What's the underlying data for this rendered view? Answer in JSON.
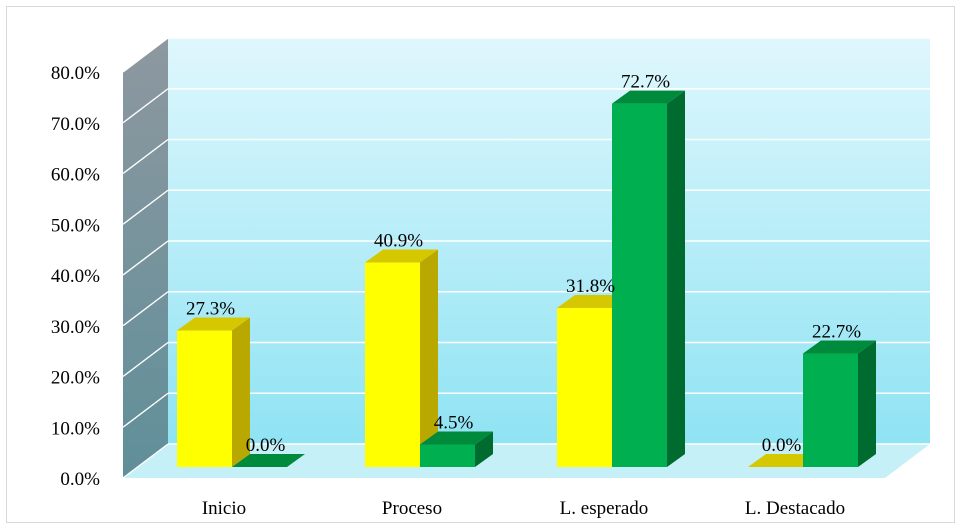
{
  "chart_data": {
    "type": "bar",
    "three_d": true,
    "categories": [
      "Inicio",
      "Proceso",
      "L. esperado",
      "L. Destacado"
    ],
    "series": [
      {
        "values": [
          27.3,
          40.9,
          31.8,
          0.0
        ],
        "color": "#ffff00",
        "top_color": "#d6c800",
        "side_color": "#b8a800"
      },
      {
        "values": [
          0.0,
          4.5,
          72.7,
          22.7
        ],
        "color": "#00b050",
        "top_color": "#008a3c",
        "side_color": "#006b2e"
      }
    ],
    "data_labels": [
      [
        "27.3%",
        "40.9%",
        "31.8%",
        "0.0%"
      ],
      [
        "0.0%",
        "4.5%",
        "72.7%",
        "22.7%"
      ]
    ],
    "ylim": [
      0,
      80
    ],
    "yticks": [
      0,
      10,
      20,
      30,
      40,
      50,
      60,
      70,
      80
    ],
    "ytick_labels": [
      "0.0%",
      "10.0%",
      "20.0%",
      "30.0%",
      "40.0%",
      "50.0%",
      "60.0%",
      "70.0%",
      "80.0%"
    ],
    "grid": true,
    "legend": "none",
    "colors": {
      "wall_top": "#dff7fd",
      "wall_bottom": "#8fe3f3",
      "side_wall_top": "#8e98a0",
      "side_wall_bottom": "#5f8f99",
      "gridline": "#ffffff"
    }
  }
}
